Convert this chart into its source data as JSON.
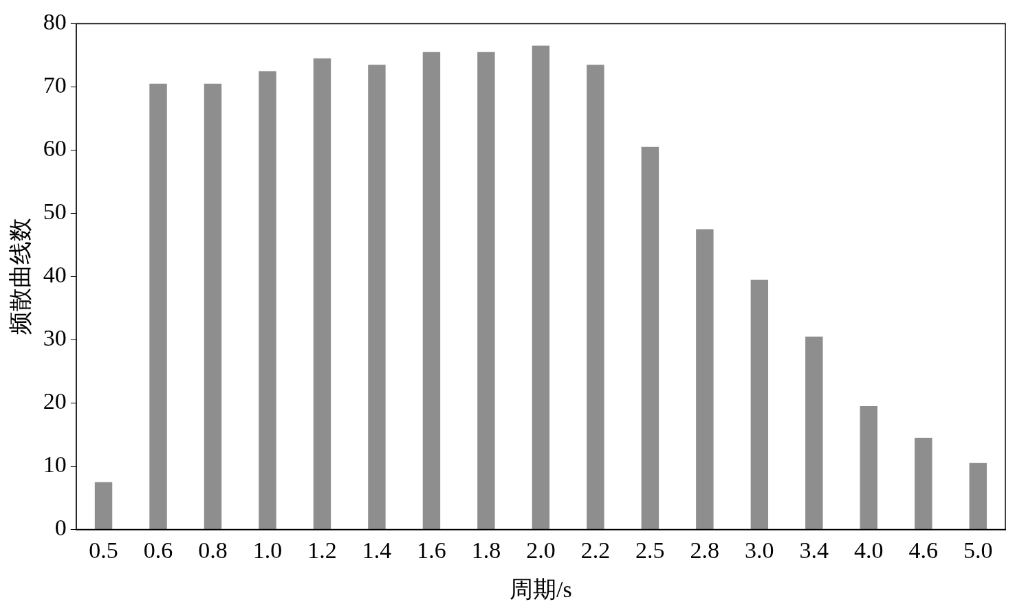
{
  "chart_data": {
    "type": "bar",
    "xlabel": "周期/s",
    "ylabel": "频散曲线数",
    "categories": [
      "0.5",
      "0.6",
      "0.8",
      "1.0",
      "1.2",
      "1.4",
      "1.6",
      "1.8",
      "2.0",
      "2.2",
      "2.5",
      "2.8",
      "3.0",
      "3.4",
      "4.0",
      "4.6",
      "5.0"
    ],
    "values": [
      7.5,
      70.5,
      70.5,
      72.5,
      74.5,
      73.5,
      75.5,
      75.5,
      76.5,
      73.5,
      60.5,
      47.5,
      39.5,
      30.5,
      19.5,
      14.5,
      10.5
    ],
    "color": "#8f8e8f",
    "ylim": [
      0,
      80
    ],
    "yticks": [
      0,
      10,
      20,
      30,
      40,
      50,
      60,
      70,
      80
    ],
    "grid": false,
    "legend": false
  }
}
